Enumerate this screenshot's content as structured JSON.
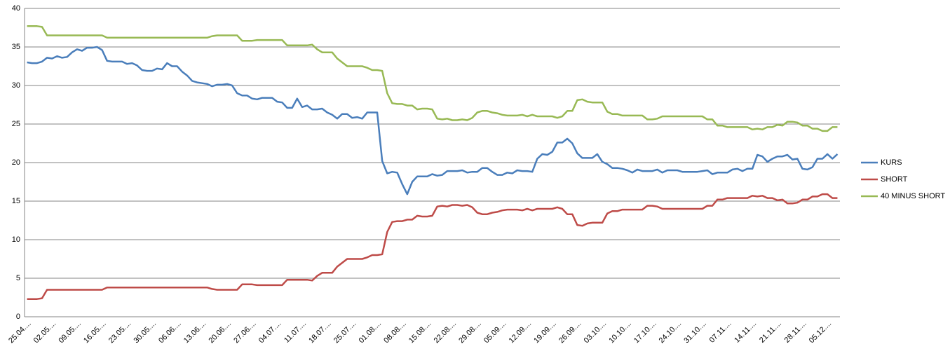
{
  "chart_data": {
    "type": "line",
    "categories": [
      "25.04....",
      null,
      null,
      null,
      null,
      "02.05....",
      null,
      null,
      null,
      null,
      "09.05....",
      null,
      null,
      null,
      null,
      "16.05....",
      null,
      null,
      null,
      null,
      "23.05....",
      null,
      null,
      null,
      null,
      "30.05....",
      null,
      null,
      null,
      null,
      "06.06....",
      null,
      null,
      null,
      null,
      "13.06....",
      null,
      null,
      null,
      null,
      "20.06....",
      null,
      null,
      null,
      null,
      "27.06....",
      null,
      null,
      null,
      null,
      "04.07....",
      null,
      null,
      null,
      null,
      "11.07....",
      null,
      null,
      null,
      null,
      "18.07....",
      null,
      null,
      null,
      null,
      "25.07....",
      null,
      null,
      null,
      null,
      "01.08....",
      null,
      null,
      null,
      null,
      "08.08....",
      null,
      null,
      null,
      null,
      "15.08....",
      null,
      null,
      null,
      null,
      "22.08....",
      null,
      null,
      null,
      null,
      "29.08....",
      null,
      null,
      null,
      null,
      "05.09....",
      null,
      null,
      null,
      null,
      "12.09....",
      null,
      null,
      null,
      null,
      "19.09....",
      null,
      null,
      null,
      null,
      "26.09....",
      null,
      null,
      null,
      null,
      "03.10....",
      null,
      null,
      null,
      null,
      "10.10....",
      null,
      null,
      null,
      null,
      "17.10....",
      null,
      null,
      null,
      null,
      "24.10....",
      null,
      null,
      null,
      null,
      "31.10....",
      null,
      null,
      null,
      null,
      "07.11....",
      null,
      null,
      null,
      null,
      "14.11....",
      null,
      null,
      null,
      null,
      "21.11....",
      null,
      null,
      null,
      null,
      "28.11....",
      null,
      null,
      null,
      null,
      "05.12....",
      null,
      null
    ],
    "series": [
      {
        "name": "KURS",
        "color": "#4a7ebb",
        "values": [
          33,
          32.9,
          32.9,
          33.1,
          33.6,
          33.5,
          33.8,
          33.6,
          33.7,
          34.3,
          34.7,
          34.5,
          34.9,
          34.9,
          35,
          34.6,
          33.2,
          33.1,
          33.1,
          33.1,
          32.8,
          32.9,
          32.6,
          32,
          31.9,
          31.9,
          32.2,
          32.1,
          32.9,
          32.5,
          32.5,
          31.8,
          31.3,
          30.6,
          30.4,
          30.3,
          30.2,
          29.9,
          30.1,
          30.1,
          30.2,
          30,
          29,
          28.7,
          28.7,
          28.3,
          28.2,
          28.4,
          28.4,
          28.4,
          27.9,
          27.8,
          27.1,
          27.1,
          28.3,
          27.2,
          27.4,
          26.9,
          26.9,
          27,
          26.5,
          26.2,
          25.7,
          26.3,
          26.3,
          25.8,
          25.9,
          25.7,
          26.5,
          26.5,
          26.5,
          20.2,
          18.6,
          18.8,
          18.7,
          17.2,
          15.9,
          17.5,
          18.2,
          18.2,
          18.2,
          18.5,
          18.3,
          18.4,
          18.9,
          18.9,
          18.9,
          19,
          18.7,
          18.8,
          18.8,
          19.3,
          19.3,
          18.8,
          18.4,
          18.4,
          18.7,
          18.6,
          19,
          18.9,
          18.9,
          18.8,
          20.5,
          21.1,
          21,
          21.4,
          22.6,
          22.6,
          23.1,
          22.5,
          21.2,
          20.6,
          20.6,
          20.6,
          21.1,
          20.1,
          19.8,
          19.3,
          19.3,
          19.2,
          19,
          18.7,
          19.1,
          18.9,
          18.9,
          18.9,
          19.1,
          18.7,
          19,
          19,
          19,
          18.8,
          18.8,
          18.8,
          18.8,
          18.9,
          19,
          18.5,
          18.7,
          18.7,
          18.7,
          19.1,
          19.2,
          18.9,
          19.2,
          19.2,
          21,
          20.8,
          20.1,
          20.5,
          20.8,
          20.8,
          21,
          20.4,
          20.5,
          19.2,
          19.1,
          19.4,
          20.5,
          20.5,
          21.1,
          20.5,
          21.1
        ]
      },
      {
        "name": "SHORT",
        "color": "#be4b48",
        "values": [
          2.3,
          2.3,
          2.3,
          2.4,
          3.5,
          3.5,
          3.5,
          3.5,
          3.5,
          3.5,
          3.5,
          3.5,
          3.5,
          3.5,
          3.5,
          3.5,
          3.8,
          3.8,
          3.8,
          3.8,
          3.8,
          3.8,
          3.8,
          3.8,
          3.8,
          3.8,
          3.8,
          3.8,
          3.8,
          3.8,
          3.8,
          3.8,
          3.8,
          3.8,
          3.8,
          3.8,
          3.8,
          3.6,
          3.5,
          3.5,
          3.5,
          3.5,
          3.5,
          4.2,
          4.2,
          4.2,
          4.1,
          4.1,
          4.1,
          4.1,
          4.1,
          4.1,
          4.8,
          4.8,
          4.8,
          4.8,
          4.8,
          4.7,
          5.3,
          5.7,
          5.7,
          5.7,
          6.5,
          7,
          7.5,
          7.5,
          7.5,
          7.5,
          7.7,
          8,
          8,
          8.1,
          11,
          12.3,
          12.4,
          12.4,
          12.6,
          12.6,
          13.1,
          13,
          13,
          13.1,
          14.3,
          14.4,
          14.3,
          14.5,
          14.5,
          14.4,
          14.5,
          14.2,
          13.5,
          13.3,
          13.3,
          13.5,
          13.6,
          13.8,
          13.9,
          13.9,
          13.9,
          13.8,
          14,
          13.8,
          14,
          14,
          14,
          14,
          14.2,
          14,
          13.3,
          13.3,
          11.9,
          11.8,
          12.1,
          12.2,
          12.2,
          12.2,
          13.4,
          13.7,
          13.7,
          13.9,
          13.9,
          13.9,
          13.9,
          13.9,
          14.4,
          14.4,
          14.3,
          14,
          14,
          14,
          14,
          14,
          14,
          14,
          14,
          14,
          14.4,
          14.4,
          15.2,
          15.2,
          15.4,
          15.4,
          15.4,
          15.4,
          15.4,
          15.7,
          15.6,
          15.7,
          15.4,
          15.4,
          15.1,
          15.2,
          14.7,
          14.7,
          14.8,
          15.2,
          15.2,
          15.6,
          15.6,
          15.9,
          15.9,
          15.4,
          15.4
        ]
      },
      {
        "name": "40 MINUS SHORT",
        "color": "#98b954",
        "values": [
          37.7,
          37.7,
          37.7,
          37.6,
          36.5,
          36.5,
          36.5,
          36.5,
          36.5,
          36.5,
          36.5,
          36.5,
          36.5,
          36.5,
          36.5,
          36.5,
          36.2,
          36.2,
          36.2,
          36.2,
          36.2,
          36.2,
          36.2,
          36.2,
          36.2,
          36.2,
          36.2,
          36.2,
          36.2,
          36.2,
          36.2,
          36.2,
          36.2,
          36.2,
          36.2,
          36.2,
          36.2,
          36.4,
          36.5,
          36.5,
          36.5,
          36.5,
          36.5,
          35.8,
          35.8,
          35.8,
          35.9,
          35.9,
          35.9,
          35.9,
          35.9,
          35.9,
          35.2,
          35.2,
          35.2,
          35.2,
          35.2,
          35.3,
          34.7,
          34.3,
          34.3,
          34.3,
          33.5,
          33,
          32.5,
          32.5,
          32.5,
          32.5,
          32.3,
          32,
          32,
          31.9,
          29,
          27.7,
          27.6,
          27.6,
          27.4,
          27.4,
          26.9,
          27,
          27,
          26.9,
          25.7,
          25.6,
          25.7,
          25.5,
          25.5,
          25.6,
          25.5,
          25.8,
          26.5,
          26.7,
          26.7,
          26.5,
          26.4,
          26.2,
          26.1,
          26.1,
          26.1,
          26.2,
          26,
          26.2,
          26,
          26,
          26,
          26,
          25.8,
          26,
          26.7,
          26.7,
          28.1,
          28.2,
          27.9,
          27.8,
          27.8,
          27.8,
          26.6,
          26.3,
          26.3,
          26.1,
          26.1,
          26.1,
          26.1,
          26.1,
          25.6,
          25.6,
          25.7,
          26,
          26,
          26,
          26,
          26,
          26,
          26,
          26,
          26,
          25.6,
          25.6,
          24.8,
          24.8,
          24.6,
          24.6,
          24.6,
          24.6,
          24.6,
          24.3,
          24.4,
          24.3,
          24.6,
          24.6,
          24.9,
          24.8,
          25.3,
          25.3,
          25.2,
          24.8,
          24.8,
          24.4,
          24.4,
          24.1,
          24.1,
          24.6,
          24.6
        ]
      }
    ],
    "ylim": [
      0,
      40
    ],
    "yticks": [
      0,
      5,
      10,
      15,
      20,
      25,
      30,
      35,
      40
    ],
    "grid": true,
    "legend": "right"
  }
}
